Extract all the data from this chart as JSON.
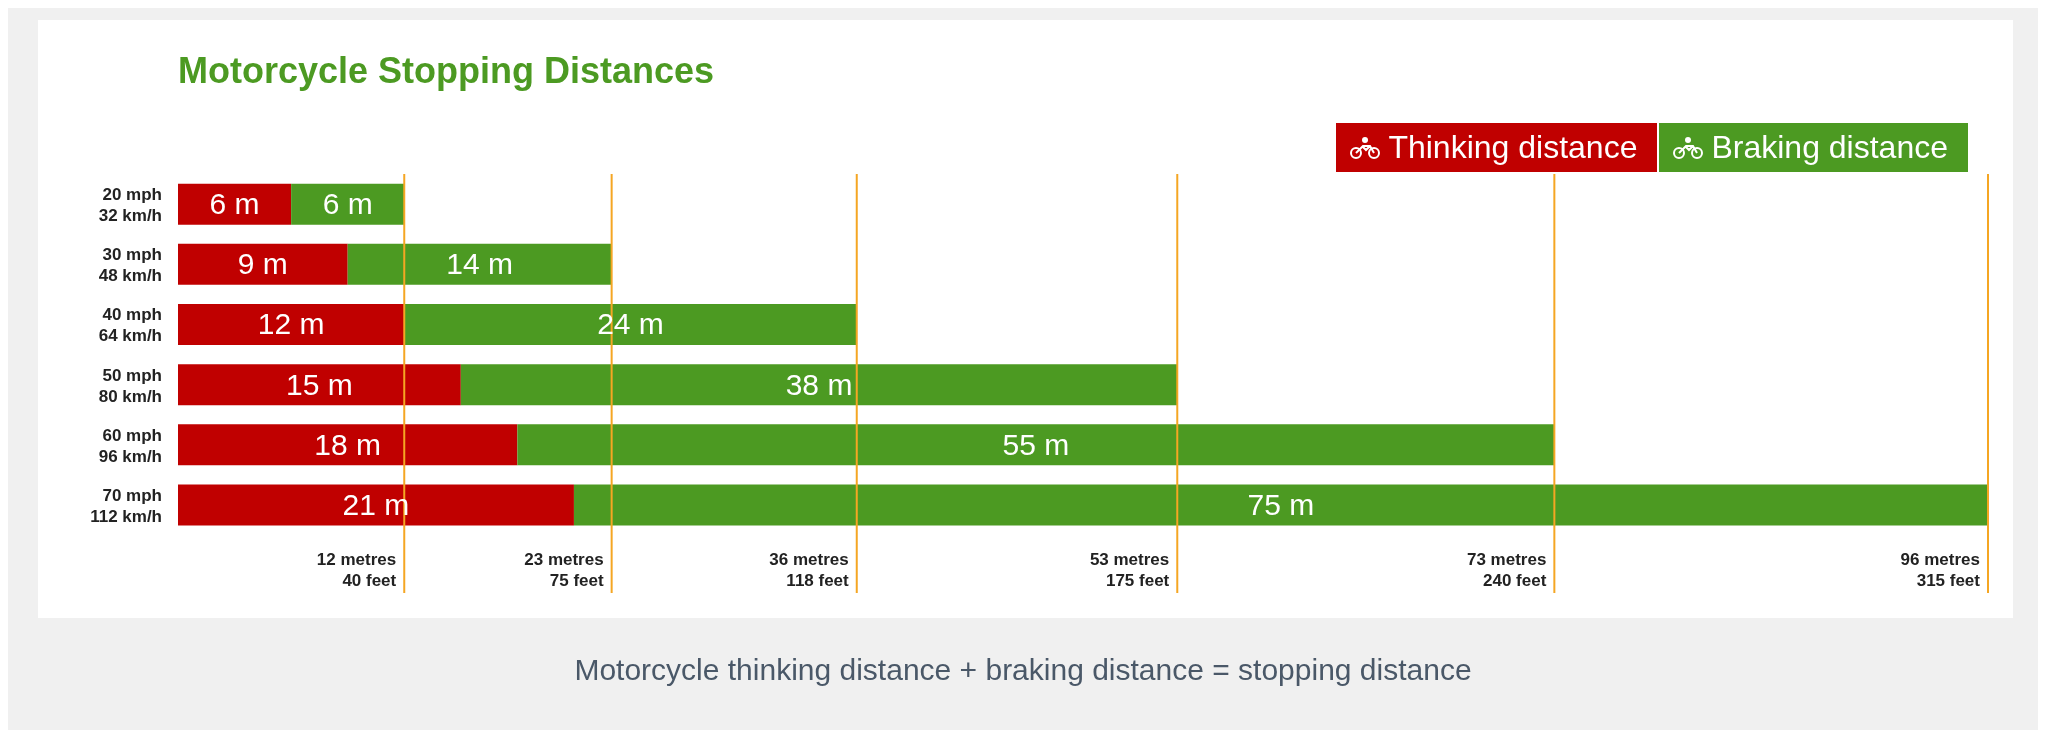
{
  "chart_data": {
    "type": "bar",
    "orientation": "horizontal",
    "stacked": true,
    "title": "Motorcycle Stopping Distances",
    "categories": [
      "20 mph\n32 km/h",
      "30 mph\n48 km/h",
      "40 mph\n64 km/h",
      "50 mph\n80 km/h",
      "60 mph\n96 km/h",
      "70 mph\n112 km/h"
    ],
    "series": [
      {
        "name": "Thinking distance",
        "color": "#c00000",
        "values": [
          6,
          9,
          12,
          15,
          18,
          21
        ],
        "value_labels": [
          "6 m",
          "9 m",
          "12 m",
          "15 m",
          "18 m",
          "21 m"
        ]
      },
      {
        "name": "Braking distance",
        "color": "#4c9a22",
        "values": [
          6,
          14,
          24,
          38,
          55,
          75
        ],
        "value_labels": [
          "6 m",
          "14 m",
          "24 m",
          "38 m",
          "55 m",
          "75 m"
        ]
      }
    ],
    "xlim": [
      0,
      96
    ],
    "tick_labels": "y",
    "legend": "top right",
    "grid": false,
    "ref_lines": [
      {
        "axis": "x",
        "value": 12,
        "label": "12 metres\n40 feet",
        "color": "#f5a623"
      },
      {
        "axis": "x",
        "value": 23,
        "label": "23 metres\n75 feet",
        "color": "#f5a623"
      },
      {
        "axis": "x",
        "value": 36,
        "label": "36 metres\n118 feet",
        "color": "#f5a623"
      },
      {
        "axis": "x",
        "value": 53,
        "label": "53 metres\n175 feet",
        "color": "#f5a623"
      },
      {
        "axis": "x",
        "value": 73,
        "label": "73 metres\n240 feet",
        "color": "#f5a623"
      },
      {
        "axis": "x",
        "value": 96,
        "label": "96 metres\n315 feet",
        "color": "#f5a623"
      }
    ],
    "annotations": [
      "Motorcycle thinking distance + braking distance = stopping distance"
    ]
  }
}
